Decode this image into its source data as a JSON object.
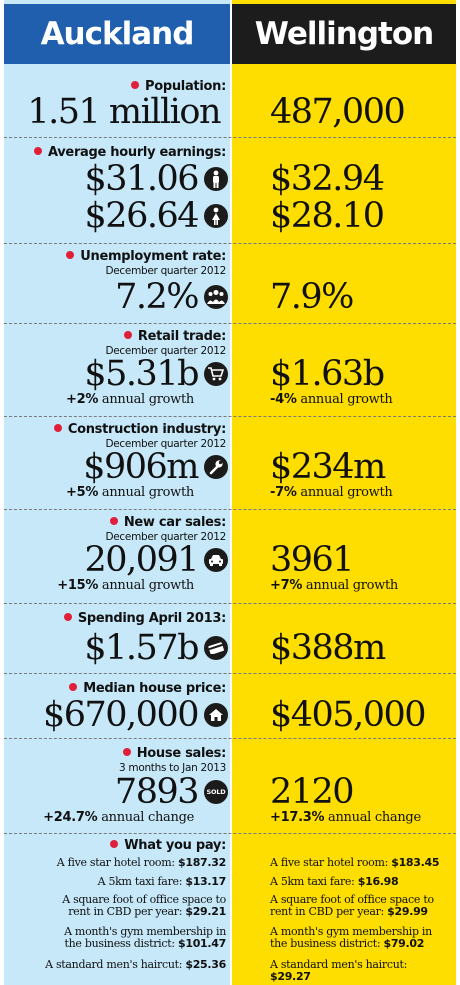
{
  "header": {
    "left": "Auckland",
    "right": "Wellington"
  },
  "population": {
    "label": "Population:",
    "auckland": "1.51 million",
    "wellington": "487,000"
  },
  "earnings": {
    "label": "Average hourly earnings:",
    "auckland_male": "$31.06",
    "auckland_female": "$26.64",
    "wellington_male": "$32.94",
    "wellington_female": "$28.10"
  },
  "unemployment": {
    "label": "Unemployment rate:",
    "sub": "December quarter 2012",
    "auckland": "7.2%",
    "wellington": "7.9%"
  },
  "retail": {
    "label": "Retail trade:",
    "sub": "December quarter 2012",
    "auckland": "$5.31b",
    "auckland_growth_value": "+2%",
    "auckland_growth_text": " annual growth",
    "wellington": "$1.63b",
    "wellington_growth_value": "-4%",
    "wellington_growth_text": " annual growth"
  },
  "construction": {
    "label": "Construction industry:",
    "sub": "December quarter 2012",
    "auckland": "$906m",
    "auckland_growth_value": "+5%",
    "auckland_growth_text": " annual growth",
    "wellington": "$234m",
    "wellington_growth_value": "-7%",
    "wellington_growth_text": " annual growth"
  },
  "cars": {
    "label": "New car sales:",
    "sub": "December quarter 2012",
    "auckland": "20,091",
    "auckland_growth_value": "+15%",
    "auckland_growth_text": " annual growth",
    "wellington": "3961",
    "wellington_growth_value": "+7%",
    "wellington_growth_text": " annual growth"
  },
  "spending": {
    "label": "Spending April 2013:",
    "auckland": "$1.57b",
    "wellington": "$388m"
  },
  "house_price": {
    "label": "Median house price:",
    "auckland": "$670,000",
    "wellington": "$405,000"
  },
  "house_sales": {
    "label": "House sales:",
    "sub": "3 months to Jan 2013",
    "auckland": "7893",
    "sold_badge": "SOLD",
    "auckland_change_value": "+24.7%",
    "auckland_change_text": " annual change",
    "wellington": "2120",
    "wellington_change_value": "+17.3%",
    "wellington_change_text": " annual change"
  },
  "pay": {
    "label": "What you pay:",
    "auckland": [
      {
        "item": "A five star hotel room: ",
        "price": "$187.32"
      },
      {
        "item": "A 5km taxi fare: ",
        "price": "$13.17"
      },
      {
        "item": "A square foot of office space to rent in CBD per year: ",
        "price": "$29.21"
      },
      {
        "item": "A month's gym membership in the business district: ",
        "price": "$101.47"
      },
      {
        "item": "A standard men's haircut: ",
        "price": "$25.36"
      }
    ],
    "wellington": [
      {
        "item": "A five star hotel room: ",
        "price": "$183.45"
      },
      {
        "item": "A 5km taxi fare: ",
        "price": "$16.98"
      },
      {
        "item": "A square foot of office space to rent in CBD per year: ",
        "price": "$29.99"
      },
      {
        "item": "A month's gym membership in the business district: ",
        "price": "$79.02"
      },
      {
        "item": "A standard men's haircut: ",
        "price": "$29.27"
      }
    ]
  },
  "colors": {
    "auckland_bg": "#c6e8f9",
    "wellington_bg": "#fede00",
    "auckland_header": "#1f5fae",
    "wellington_header": "#1c1c1c",
    "bullet": "#e0203a"
  },
  "icons": [
    "male-icon",
    "female-icon",
    "people-icon",
    "cart-icon",
    "wrench-icon",
    "car-icon",
    "card-icon",
    "house-icon",
    "sold-icon"
  ]
}
